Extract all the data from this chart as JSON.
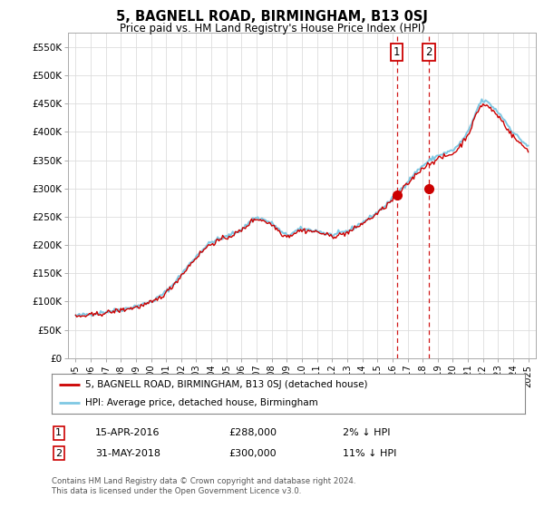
{
  "title": "5, BAGNELL ROAD, BIRMINGHAM, B13 0SJ",
  "subtitle": "Price paid vs. HM Land Registry's House Price Index (HPI)",
  "legend_line1": "5, BAGNELL ROAD, BIRMINGHAM, B13 0SJ (detached house)",
  "legend_line2": "HPI: Average price, detached house, Birmingham",
  "annotation1_label": "1",
  "annotation1_date": "15-APR-2016",
  "annotation1_price": "£288,000",
  "annotation1_hpi": "2% ↓ HPI",
  "annotation2_label": "2",
  "annotation2_date": "31-MAY-2018",
  "annotation2_price": "£300,000",
  "annotation2_hpi": "11% ↓ HPI",
  "footer": "Contains HM Land Registry data © Crown copyright and database right 2024.\nThis data is licensed under the Open Government Licence v3.0.",
  "hpi_color": "#7ec8e3",
  "price_color": "#cc0000",
  "annotation_color": "#cc0000",
  "vline_color": "#cc0000",
  "bg_color": "#ffffff",
  "grid_color": "#dddddd",
  "ylim": [
    0,
    575000
  ],
  "yticks": [
    0,
    50000,
    100000,
    150000,
    200000,
    250000,
    300000,
    350000,
    400000,
    450000,
    500000,
    550000
  ],
  "ytick_labels": [
    "£0",
    "£50K",
    "£100K",
    "£150K",
    "£200K",
    "£250K",
    "£300K",
    "£350K",
    "£400K",
    "£450K",
    "£500K",
    "£550K"
  ],
  "sale1_x": 2016.29,
  "sale1_y": 288000,
  "sale2_x": 2018.42,
  "sale2_y": 300000,
  "vline1_x": 2016.29,
  "vline2_x": 2018.42,
  "xlim": [
    1994.5,
    2025.5
  ],
  "xticks": [
    1995,
    1996,
    1997,
    1998,
    1999,
    2000,
    2001,
    2002,
    2003,
    2004,
    2005,
    2006,
    2007,
    2008,
    2009,
    2010,
    2011,
    2012,
    2013,
    2014,
    2015,
    2016,
    2017,
    2018,
    2019,
    2020,
    2021,
    2022,
    2023,
    2024,
    2025
  ],
  "hpi_keypoints": [
    [
      1995,
      75000
    ],
    [
      1996,
      78000
    ],
    [
      1997,
      82000
    ],
    [
      1998,
      86000
    ],
    [
      1999,
      92000
    ],
    [
      2000,
      100000
    ],
    [
      2001,
      118000
    ],
    [
      2002,
      148000
    ],
    [
      2003,
      180000
    ],
    [
      2004,
      205000
    ],
    [
      2005,
      215000
    ],
    [
      2006,
      228000
    ],
    [
      2007,
      248000
    ],
    [
      2008,
      238000
    ],
    [
      2009,
      218000
    ],
    [
      2010,
      228000
    ],
    [
      2011,
      225000
    ],
    [
      2012,
      218000
    ],
    [
      2013,
      225000
    ],
    [
      2014,
      240000
    ],
    [
      2015,
      258000
    ],
    [
      2016,
      282000
    ],
    [
      2017,
      312000
    ],
    [
      2018,
      340000
    ],
    [
      2019,
      358000
    ],
    [
      2020,
      368000
    ],
    [
      2021,
      400000
    ],
    [
      2022,
      455000
    ],
    [
      2023,
      435000
    ],
    [
      2024,
      400000
    ],
    [
      2025,
      375000
    ]
  ],
  "price_keypoints": [
    [
      1995,
      73000
    ],
    [
      1996,
      76000
    ],
    [
      1997,
      80000
    ],
    [
      1998,
      85000
    ],
    [
      1999,
      90000
    ],
    [
      2000,
      98000
    ],
    [
      2001,
      116000
    ],
    [
      2002,
      146000
    ],
    [
      2003,
      178000
    ],
    [
      2004,
      202000
    ],
    [
      2005,
      213000
    ],
    [
      2006,
      226000
    ],
    [
      2007,
      246000
    ],
    [
      2008,
      236000
    ],
    [
      2009,
      216000
    ],
    [
      2010,
      226000
    ],
    [
      2011,
      223000
    ],
    [
      2012,
      216000
    ],
    [
      2013,
      222000
    ],
    [
      2014,
      238000
    ],
    [
      2015,
      256000
    ],
    [
      2016,
      280000
    ],
    [
      2017,
      308000
    ],
    [
      2018,
      336000
    ],
    [
      2019,
      352000
    ],
    [
      2020,
      362000
    ],
    [
      2021,
      396000
    ],
    [
      2022,
      448000
    ],
    [
      2023,
      428000
    ],
    [
      2024,
      392000
    ],
    [
      2025,
      368000
    ]
  ]
}
